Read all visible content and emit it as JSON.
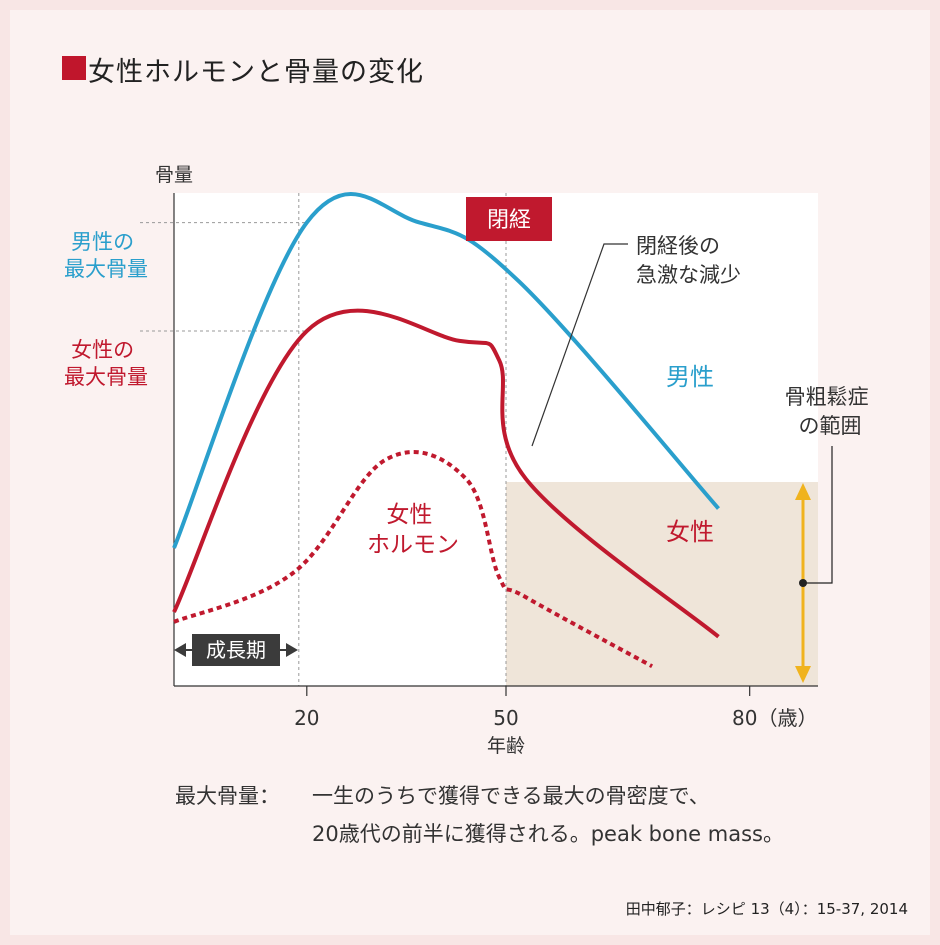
{
  "title": "女性ホルモンと骨量の変化",
  "colors": {
    "male": "#2a9fcc",
    "female": "#c0192e",
    "osteo": "#f0b31e",
    "shade": "#efe5d9",
    "badge": "#c0192e",
    "growth": "#3b3b3b"
  },
  "chart_data": {
    "type": "line",
    "ylabel": "骨量",
    "xlabel": "年齢",
    "x_ticks": [
      "20",
      "50",
      "80（歳）"
    ],
    "series": [
      {
        "name": "男性",
        "style": "solid",
        "points": [
          [
            0,
            0.28
          ],
          [
            20,
            0.94
          ],
          [
            37,
            0.94
          ],
          [
            52,
            0.82
          ],
          [
            82,
            0.36
          ]
        ]
      },
      {
        "name": "女性",
        "style": "solid",
        "points": [
          [
            0,
            0.15
          ],
          [
            20,
            0.72
          ],
          [
            43,
            0.7
          ],
          [
            49,
            0.66
          ],
          [
            53,
            0.42
          ],
          [
            82,
            0.1
          ]
        ]
      },
      {
        "name": "女性ホルモン",
        "style": "dotted",
        "points": [
          [
            0,
            0.13
          ],
          [
            18,
            0.23
          ],
          [
            32,
            0.46
          ],
          [
            44,
            0.42
          ],
          [
            49,
            0.22
          ],
          [
            53,
            0.18
          ],
          [
            72,
            0.04
          ]
        ]
      }
    ],
    "menopause_label": "閉経",
    "male_peak_label": [
      "男性の",
      "最大骨量"
    ],
    "female_peak_label": [
      "女性の",
      "最大骨量"
    ],
    "hormone_label": [
      "女性",
      "ホルモン"
    ],
    "callout_decline": [
      "閉経後の",
      "急激な減少"
    ],
    "osteoporosis_label": [
      "骨粗鬆症",
      "の範囲"
    ],
    "growth_label": "成長期"
  },
  "footer": {
    "term": "最大骨量：",
    "line1": "一生のうちで獲得できる最大の骨密度で、",
    "line2": "20歳代の前半に獲得される。peak bone mass。"
  },
  "citation": "田中郁子：レシピ 13（4）：15-37, 2014"
}
